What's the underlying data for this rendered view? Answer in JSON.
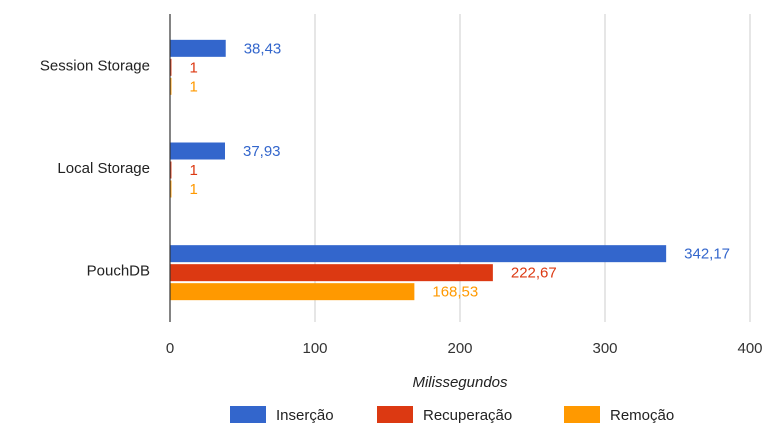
{
  "chart_data": {
    "type": "bar",
    "orientation": "horizontal",
    "categories": [
      "Session Storage",
      "Local Storage",
      "PouchDB"
    ],
    "series": [
      {
        "name": "Inserção",
        "values": [
          38.43,
          37.93,
          342.17
        ],
        "labels": [
          "38,43",
          "37,93",
          "342,17"
        ],
        "color": "#3366cc"
      },
      {
        "name": "Recuperação",
        "values": [
          1,
          1,
          222.67
        ],
        "labels": [
          "1",
          "1",
          "222,67"
        ],
        "color": "#dc3912"
      },
      {
        "name": "Remoção",
        "values": [
          1,
          1,
          168.53
        ],
        "labels": [
          "1",
          "1",
          "168,53"
        ],
        "color": "#ff9900"
      }
    ],
    "x_ticks": [
      0,
      100,
      200,
      300,
      400
    ],
    "x_tick_labels": [
      "0",
      "100",
      "200",
      "300",
      "400"
    ],
    "xlim": [
      0,
      400
    ],
    "xlabel": "Milissegundos",
    "ylabel": "",
    "title": "",
    "grid": true,
    "legend_position": "bottom"
  }
}
